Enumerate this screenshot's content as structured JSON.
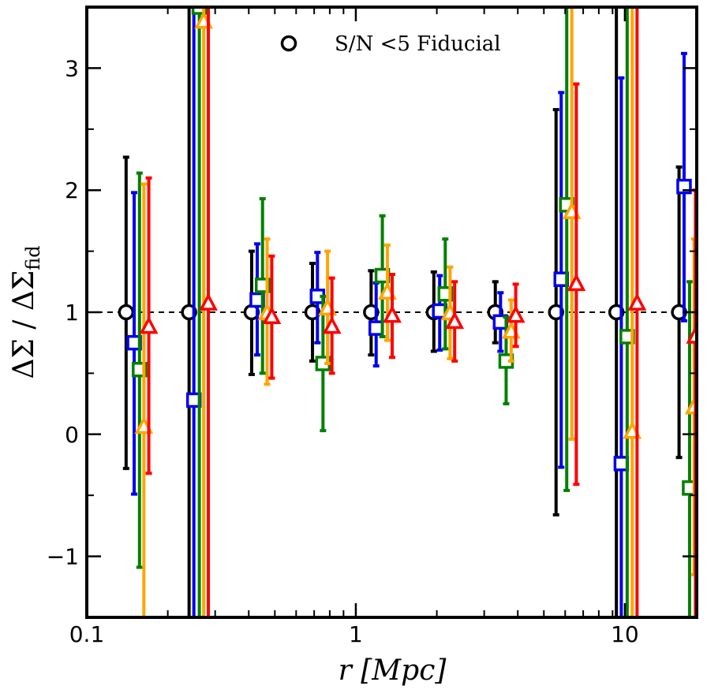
{
  "chart_data": {
    "type": "scatter",
    "xscale": "log",
    "xlim": [
      0.1,
      18.5
    ],
    "ylim": [
      -1.5,
      3.5
    ],
    "xlabel": "r [Mpc]",
    "ylabel": "ΔΣ / ΔΣ_fid",
    "xtick_labels": [
      "0.1",
      "1",
      "10"
    ],
    "xtick_values": [
      0.1,
      1,
      10
    ],
    "ytick_labels": [
      "−1",
      "0",
      "1",
      "2",
      "3"
    ],
    "ytick_values": [
      -1,
      0,
      1,
      2,
      3
    ],
    "reference_line": {
      "y": 1,
      "style": "dashed",
      "color": "#000000"
    },
    "legend": {
      "position": "top-center",
      "marker": "circle",
      "label": "S/N <5 Fiducial"
    },
    "series": [
      {
        "name": "S/N <5 Fiducial",
        "color": "#000000",
        "marker": "circle",
        "points": [
          {
            "x": 0.14,
            "y": 1.0,
            "lo": -0.28,
            "hi": 2.27
          },
          {
            "x": 0.24,
            "y": 1.0,
            "lo": -2.0,
            "hi": 4.0
          },
          {
            "x": 0.41,
            "y": 1.0,
            "lo": 0.49,
            "hi": 1.5
          },
          {
            "x": 0.69,
            "y": 1.0,
            "lo": 0.6,
            "hi": 1.4
          },
          {
            "x": 1.14,
            "y": 1.0,
            "lo": 0.65,
            "hi": 1.34
          },
          {
            "x": 1.95,
            "y": 1.0,
            "lo": 0.68,
            "hi": 1.33
          },
          {
            "x": 3.3,
            "y": 1.0,
            "lo": 0.75,
            "hi": 1.25
          },
          {
            "x": 5.55,
            "y": 1.0,
            "lo": -0.66,
            "hi": 2.66
          },
          {
            "x": 9.3,
            "y": 1.0,
            "lo": -2.0,
            "hi": 4.0
          },
          {
            "x": 15.9,
            "y": 1.0,
            "lo": -0.19,
            "hi": 2.19
          }
        ]
      },
      {
        "name": "blue",
        "color": "#0000ee",
        "marker": "square",
        "points": [
          {
            "x": 0.15,
            "y": 0.75,
            "lo": -0.49,
            "hi": 1.98
          },
          {
            "x": 0.25,
            "y": 0.28,
            "lo": -2.0,
            "hi": 4.0
          },
          {
            "x": 0.43,
            "y": 1.1,
            "lo": 0.65,
            "hi": 1.56
          },
          {
            "x": 0.72,
            "y": 1.13,
            "lo": 0.75,
            "hi": 1.49
          },
          {
            "x": 1.19,
            "y": 0.87,
            "lo": 0.56,
            "hi": 1.24
          },
          {
            "x": 2.05,
            "y": 1.01,
            "lo": 0.69,
            "hi": 1.3
          },
          {
            "x": 3.45,
            "y": 0.92,
            "lo": 0.68,
            "hi": 1.16
          },
          {
            "x": 5.8,
            "y": 1.27,
            "lo": -0.27,
            "hi": 2.8
          },
          {
            "x": 9.7,
            "y": -0.24,
            "lo": -2.0,
            "hi": 2.92
          },
          {
            "x": 16.6,
            "y": 2.03,
            "lo": 0.93,
            "hi": 3.12
          }
        ]
      },
      {
        "name": "green",
        "color": "#008000",
        "marker": "square",
        "points": [
          {
            "x": 0.157,
            "y": 0.53,
            "lo": -1.09,
            "hi": 2.14
          },
          {
            "x": 0.262,
            "y": 3.5,
            "lo": -2.0,
            "hi": 4.0
          },
          {
            "x": 0.45,
            "y": 1.22,
            "lo": 0.5,
            "hi": 1.93
          },
          {
            "x": 0.755,
            "y": 0.58,
            "lo": 0.03,
            "hi": 1.13
          },
          {
            "x": 1.255,
            "y": 1.3,
            "lo": 0.8,
            "hi": 1.79
          },
          {
            "x": 2.15,
            "y": 1.15,
            "lo": 0.7,
            "hi": 1.6
          },
          {
            "x": 3.62,
            "y": 0.6,
            "lo": 0.25,
            "hi": 0.96
          },
          {
            "x": 6.08,
            "y": 1.88,
            "lo": -0.46,
            "hi": 4.0
          },
          {
            "x": 10.2,
            "y": 0.8,
            "lo": -2.0,
            "hi": 4.0
          },
          {
            "x": 17.4,
            "y": -0.44,
            "lo": -2.0,
            "hi": 1.25
          }
        ]
      },
      {
        "name": "orange",
        "color": "#ffa500",
        "marker": "triangle",
        "points": [
          {
            "x": 0.163,
            "y": 0.06,
            "lo": -2.0,
            "hi": 2.05
          },
          {
            "x": 0.272,
            "y": 3.38,
            "lo": -2.0,
            "hi": 4.0
          },
          {
            "x": 0.468,
            "y": 0.99,
            "lo": 0.41,
            "hi": 1.6
          },
          {
            "x": 0.785,
            "y": 1.03,
            "lo": 0.58,
            "hi": 1.5
          },
          {
            "x": 1.31,
            "y": 1.16,
            "lo": 0.77,
            "hi": 1.55
          },
          {
            "x": 2.24,
            "y": 0.99,
            "lo": 0.62,
            "hi": 1.37
          },
          {
            "x": 3.78,
            "y": 0.84,
            "lo": 0.6,
            "hi": 1.1
          },
          {
            "x": 6.35,
            "y": 1.82,
            "lo": -0.04,
            "hi": 4.0
          },
          {
            "x": 10.65,
            "y": 0.02,
            "lo": -2.0,
            "hi": 4.0
          },
          {
            "x": 18.1,
            "y": 0.22,
            "lo": -1.15,
            "hi": 1.6
          }
        ]
      },
      {
        "name": "red",
        "color": "#ff0000",
        "marker": "triangle",
        "points": [
          {
            "x": 0.17,
            "y": 0.88,
            "lo": -0.32,
            "hi": 2.1
          },
          {
            "x": 0.283,
            "y": 1.07,
            "lo": -2.0,
            "hi": 4.0
          },
          {
            "x": 0.487,
            "y": 0.96,
            "lo": 0.46,
            "hi": 1.46
          },
          {
            "x": 0.815,
            "y": 0.88,
            "lo": 0.5,
            "hi": 1.28
          },
          {
            "x": 1.365,
            "y": 0.97,
            "lo": 0.63,
            "hi": 1.31
          },
          {
            "x": 2.33,
            "y": 0.92,
            "lo": 0.6,
            "hi": 1.25
          },
          {
            "x": 3.93,
            "y": 0.97,
            "lo": 0.72,
            "hi": 1.23
          },
          {
            "x": 6.6,
            "y": 1.23,
            "lo": -0.41,
            "hi": 2.87
          },
          {
            "x": 11.1,
            "y": 1.07,
            "lo": -2.0,
            "hi": 4.0
          },
          {
            "x": 18.3,
            "y": 0.8,
            "lo": -2.0,
            "hi": 2.0
          }
        ]
      }
    ]
  }
}
